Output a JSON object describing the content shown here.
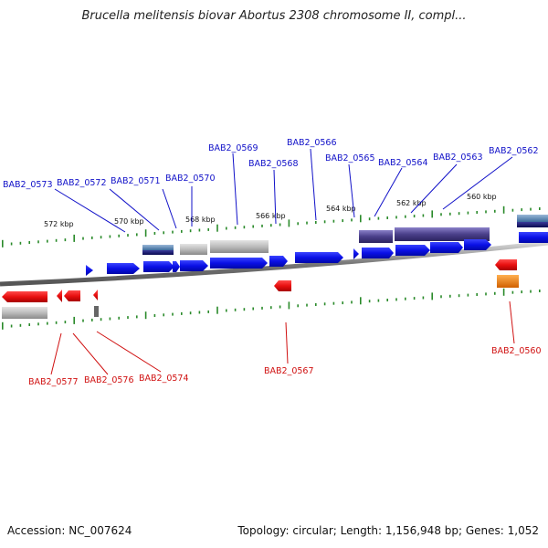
{
  "title": "Brucella melitensis biovar Abortus 2308 chromosome II, compl...",
  "footer": {
    "accession": "Accession: NC_007624",
    "summary": "Topology: circular; Length: 1,156,948 bp; Genes: 1,052"
  },
  "colors": {
    "forward_label": "#1010c8",
    "reverse_label": "#d01010",
    "forward_cds": "#0a10e6",
    "reverse_cds": "#e81010",
    "pseudo_gray": "#bbbbbb",
    "purple_feature": "#4a3f8a",
    "orange_feature": "#f08010",
    "tick": "#2a8a2a",
    "backbone": "#777777"
  },
  "scale_ticks": [
    "572 kbp",
    "570 kbp",
    "568 kbp",
    "566 kbp",
    "564 kbp",
    "562 kbp",
    "560 kbp"
  ],
  "forward_genes": [
    {
      "label": "BAB2_0573"
    },
    {
      "label": "BAB2_0572"
    },
    {
      "label": "BAB2_0571"
    },
    {
      "label": "BAB2_0570"
    },
    {
      "label": "BAB2_0569"
    },
    {
      "label": "BAB2_0568"
    },
    {
      "label": "BAB2_0566"
    },
    {
      "label": "BAB2_0565"
    },
    {
      "label": "BAB2_0564"
    },
    {
      "label": "BAB2_0563"
    },
    {
      "label": "BAB2_0562"
    }
  ],
  "reverse_genes": [
    {
      "label": "BAB2_0577"
    },
    {
      "label": "BAB2_0576"
    },
    {
      "label": "BAB2_0574"
    },
    {
      "label": "BAB2_0567"
    },
    {
      "label": "BAB2_0560"
    }
  ]
}
